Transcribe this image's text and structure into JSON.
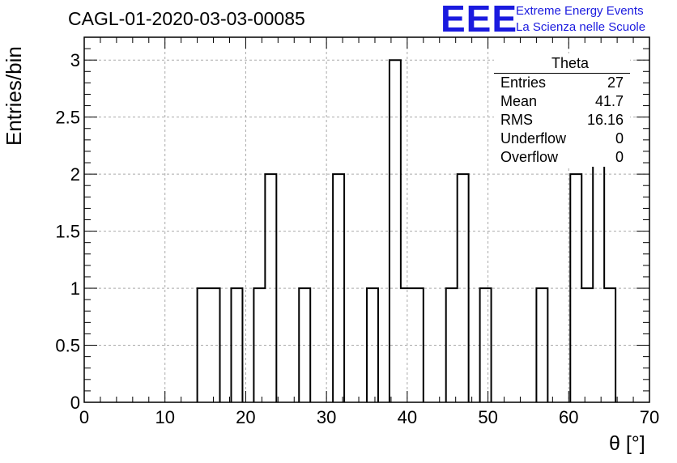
{
  "title": "CAGL-01-2020-03-03-00085",
  "logo": {
    "mark": "EEE",
    "line1": "Extreme Energy Events",
    "line2": "La Scienza nelle Scuole",
    "color": "#1a1adf"
  },
  "stats": {
    "name": "Theta",
    "rows": [
      {
        "label": "Entries",
        "value": "27"
      },
      {
        "label": "Mean",
        "value": "41.7"
      },
      {
        "label": "RMS",
        "value": "16.16"
      },
      {
        "label": "Underflow",
        "value": "0"
      },
      {
        "label": "Overflow",
        "value": "0"
      }
    ]
  },
  "chart_data": {
    "type": "bar",
    "histogram": true,
    "xlabel": "θ [°]",
    "ylabel": "Entries/bin",
    "xlim": [
      0,
      70
    ],
    "ylim": [
      0,
      3.2
    ],
    "grid": true,
    "bin_width": 1.4,
    "xticks": [
      0,
      10,
      20,
      30,
      40,
      50,
      60,
      70
    ],
    "yticks": [
      0,
      0.5,
      1,
      1.5,
      2,
      2.5,
      3
    ],
    "ytick_labels": [
      "0",
      "0.5",
      "1",
      "1.5",
      "2",
      "2.5",
      "3"
    ],
    "bins": [
      {
        "x0": 14.0,
        "x1": 15.4,
        "count": 1
      },
      {
        "x0": 15.4,
        "x1": 16.8,
        "count": 1
      },
      {
        "x0": 18.2,
        "x1": 19.6,
        "count": 1
      },
      {
        "x0": 21.0,
        "x1": 22.4,
        "count": 1
      },
      {
        "x0": 22.4,
        "x1": 23.8,
        "count": 2
      },
      {
        "x0": 26.6,
        "x1": 28.0,
        "count": 1
      },
      {
        "x0": 30.8,
        "x1": 32.2,
        "count": 2
      },
      {
        "x0": 35.0,
        "x1": 36.4,
        "count": 1
      },
      {
        "x0": 37.8,
        "x1": 39.2,
        "count": 3
      },
      {
        "x0": 39.2,
        "x1": 40.6,
        "count": 1
      },
      {
        "x0": 40.6,
        "x1": 42.0,
        "count": 1
      },
      {
        "x0": 44.8,
        "x1": 46.2,
        "count": 1
      },
      {
        "x0": 46.2,
        "x1": 47.6,
        "count": 2
      },
      {
        "x0": 49.0,
        "x1": 50.4,
        "count": 1
      },
      {
        "x0": 56.0,
        "x1": 57.4,
        "count": 1
      },
      {
        "x0": 60.2,
        "x1": 61.6,
        "count": 2
      },
      {
        "x0": 61.6,
        "x1": 63.0,
        "count": 1
      },
      {
        "x0": 63.0,
        "x1": 64.4,
        "count": 3
      },
      {
        "x0": 64.4,
        "x1": 65.8,
        "count": 1
      }
    ]
  }
}
